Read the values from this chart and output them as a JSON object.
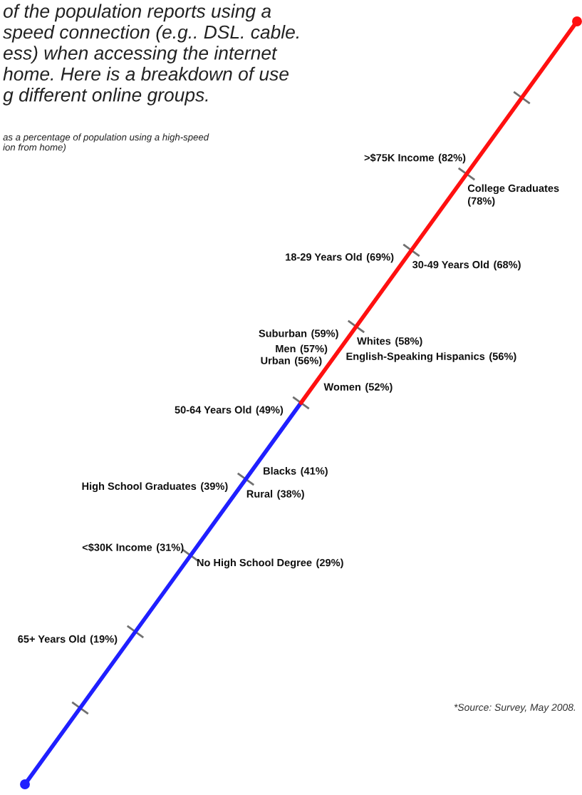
{
  "chart_data": {
    "type": "other",
    "title": "of the population reports using a\nspeed connection (e.g.. DSL. cable.\ness) when accessing the internet\nhome. Here is a breakdown of use\ng different online groups.",
    "subtitle": "as a percentage of population using a high-speed\nion from home)",
    "annotations": [
      "*Source: Survey, May 2008."
    ],
    "categories": [
      ">$75K Income",
      "College Graduates",
      "18-29 Years Old",
      "30-49 Years Old",
      "Suburban",
      "Whites",
      "Men",
      "English-Speaking Hispanics",
      "Urban",
      "Women",
      "50-64 Years Old",
      "Blacks",
      "High School Graduates",
      "Rural",
      "<$30K Income",
      "No High School Degree",
      "65+ Years Old"
    ],
    "values": [
      82,
      78,
      69,
      68,
      59,
      58,
      57,
      56,
      56,
      52,
      49,
      41,
      39,
      38,
      31,
      29,
      19
    ],
    "value_labels": [
      "(82%)",
      "(78%)",
      "(69%)",
      "(68%)",
      "(59%)",
      "(58%)",
      "(57%)",
      "(56%)",
      "(56%)",
      "(52%)",
      "(49%)",
      "(41%)",
      "(39%)",
      "(38%)",
      "(31%)",
      "(29%)",
      "(19%)"
    ],
    "colors": [
      "#ff1010",
      "#ff1010",
      "#ff1010",
      "#ff1010",
      "#ff1010",
      "#ff1010",
      "#ff1010",
      "#ff1010",
      "#ff1010",
      "#ff1010",
      "#1f1fff",
      "#1f1fff",
      "#1f1fff",
      "#1f1fff",
      "#1f1fff",
      "#1f1fff",
      "#1f1fff"
    ]
  }
}
